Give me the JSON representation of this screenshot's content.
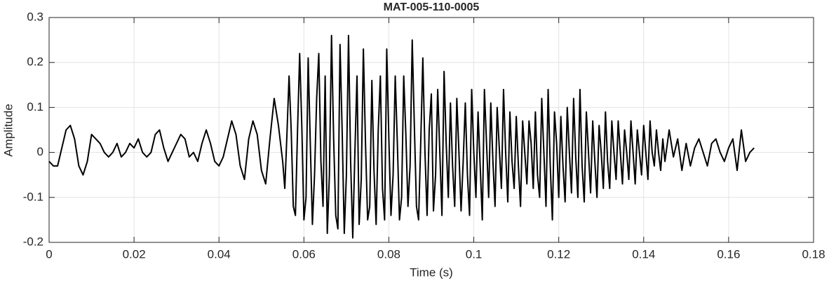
{
  "chart_data": {
    "type": "line",
    "title": "MAT-005-110-0005",
    "xlabel": "Time (s)",
    "ylabel": "Amplitude",
    "xlim": [
      0,
      0.18
    ],
    "xticks": [
      0,
      0.02,
      0.04,
      0.06,
      0.08,
      0.1,
      0.12,
      0.14,
      0.16,
      0.18
    ],
    "ylim": [
      -0.2,
      0.3
    ],
    "yticks": [
      -0.2,
      -0.1,
      0,
      0.1,
      0.2,
      0.3
    ],
    "grid": true,
    "x": [
      0,
      0.001,
      0.002,
      0.003,
      0.004,
      0.005,
      0.006,
      0.007,
      0.008,
      0.009,
      0.01,
      0.011,
      0.012,
      0.013,
      0.014,
      0.015,
      0.016,
      0.017,
      0.018,
      0.019,
      0.02,
      0.021,
      0.022,
      0.023,
      0.024,
      0.025,
      0.026,
      0.027,
      0.028,
      0.029,
      0.03,
      0.031,
      0.032,
      0.033,
      0.034,
      0.035,
      0.036,
      0.037,
      0.038,
      0.039,
      0.04,
      0.041,
      0.042,
      0.043,
      0.044,
      0.045,
      0.046,
      0.047,
      0.048,
      0.049,
      0.05,
      0.051,
      0.052,
      0.053,
      0.054,
      0.055,
      0.0555,
      0.056,
      0.0565,
      0.057,
      0.0575,
      0.058,
      0.0585,
      0.059,
      0.0595,
      0.06,
      0.0605,
      0.061,
      0.0615,
      0.062,
      0.0625,
      0.063,
      0.0635,
      0.064,
      0.0645,
      0.065,
      0.0655,
      0.066,
      0.0665,
      0.067,
      0.0675,
      0.068,
      0.0685,
      0.069,
      0.0695,
      0.07,
      0.0705,
      0.071,
      0.0715,
      0.072,
      0.0725,
      0.073,
      0.0735,
      0.074,
      0.0745,
      0.075,
      0.0755,
      0.076,
      0.0765,
      0.077,
      0.0775,
      0.078,
      0.0785,
      0.079,
      0.0795,
      0.08,
      0.0805,
      0.081,
      0.0815,
      0.082,
      0.0825,
      0.083,
      0.0835,
      0.084,
      0.0845,
      0.085,
      0.0855,
      0.086,
      0.0865,
      0.087,
      0.0875,
      0.088,
      0.0885,
      0.089,
      0.0895,
      0.09,
      0.0905,
      0.091,
      0.0915,
      0.092,
      0.0925,
      0.093,
      0.0935,
      0.094,
      0.0945,
      0.095,
      0.0955,
      0.096,
      0.0965,
      0.097,
      0.0975,
      0.098,
      0.0985,
      0.099,
      0.0995,
      0.1,
      0.1005,
      0.101,
      0.1015,
      0.102,
      0.1025,
      0.103,
      0.1035,
      0.104,
      0.1045,
      0.105,
      0.1055,
      0.106,
      0.1065,
      0.107,
      0.1075,
      0.108,
      0.1085,
      0.109,
      0.1095,
      0.11,
      0.1105,
      0.111,
      0.1115,
      0.112,
      0.1125,
      0.113,
      0.1135,
      0.114,
      0.1145,
      0.115,
      0.1155,
      0.116,
      0.1165,
      0.117,
      0.1175,
      0.118,
      0.1185,
      0.119,
      0.1195,
      0.12,
      0.1205,
      0.121,
      0.1215,
      0.122,
      0.1225,
      0.123,
      0.1235,
      0.124,
      0.1245,
      0.125,
      0.1255,
      0.126,
      0.1265,
      0.127,
      0.1275,
      0.128,
      0.1285,
      0.129,
      0.1295,
      0.13,
      0.1305,
      0.131,
      0.1315,
      0.132,
      0.1325,
      0.133,
      0.1335,
      0.134,
      0.1345,
      0.135,
      0.1355,
      0.136,
      0.1365,
      0.137,
      0.1375,
      0.138,
      0.1385,
      0.139,
      0.1395,
      0.14,
      0.1405,
      0.141,
      0.1415,
      0.142,
      0.1425,
      0.143,
      0.1435,
      0.144,
      0.1445,
      0.145,
      0.146,
      0.147,
      0.148,
      0.149,
      0.15,
      0.151,
      0.152,
      0.153,
      0.154,
      0.155,
      0.156,
      0.157,
      0.158,
      0.159,
      0.16,
      0.161,
      0.162,
      0.163,
      0.164,
      0.165,
      0.166
    ],
    "series": [
      {
        "color": "#000000",
        "values": [
          -0.02,
          -0.03,
          -0.03,
          0.01,
          0.05,
          0.06,
          0.03,
          -0.03,
          -0.05,
          -0.02,
          0.04,
          0.03,
          0.02,
          0,
          -0.01,
          0,
          0.02,
          -0.01,
          0,
          0.02,
          0.01,
          0.03,
          0,
          -0.01,
          0,
          0.04,
          0.05,
          0.01,
          -0.02,
          0,
          0.02,
          0.04,
          0.03,
          -0.01,
          0,
          -0.02,
          0.02,
          0.05,
          0.02,
          -0.02,
          -0.03,
          -0.01,
          0.03,
          0.07,
          0.04,
          -0.03,
          -0.06,
          0.03,
          0.07,
          0.04,
          -0.04,
          -0.07,
          0.03,
          0.12,
          0.06,
          -0.02,
          -0.08,
          0.04,
          0.17,
          0.05,
          -0.12,
          -0.14,
          0.05,
          0.22,
          0.06,
          -0.15,
          -0.1,
          0.21,
          0.02,
          -0.16,
          -0.05,
          0.12,
          0.22,
          -0.02,
          -0.12,
          0.17,
          -0.18,
          -0.05,
          0.26,
          0.03,
          -0.14,
          -0.17,
          0.24,
          0.05,
          -0.18,
          -0.05,
          0.26,
          -0.02,
          -0.19,
          0,
          0.17,
          -0.16,
          -0.06,
          0.23,
          0.02,
          -0.15,
          -0.12,
          0.16,
          -0.04,
          -0.16,
          0.05,
          0.17,
          -0.08,
          -0.15,
          0.23,
          0.03,
          -0.14,
          -0.05,
          0.17,
          0.02,
          -0.15,
          -0.1,
          0.17,
          0.04,
          -0.12,
          -0.03,
          0.25,
          0.06,
          -0.12,
          -0.15,
          0.02,
          0.21,
          0,
          -0.14,
          0.05,
          0.13,
          -0.13,
          -0.05,
          0.14,
          0,
          -0.14,
          0.18,
          0.02,
          -0.1,
          0.11,
          -0.03,
          -0.12,
          0.12,
          0,
          -0.13,
          -0.02,
          0.11,
          -0.05,
          -0.14,
          0.14,
          0,
          -0.1,
          0.09,
          -0.03,
          -0.15,
          0.14,
          0.02,
          -0.1,
          0.11,
          -0.02,
          -0.12,
          0.1,
          0.01,
          -0.08,
          0.14,
          0,
          -0.11,
          0.09,
          -0.02,
          -0.08,
          0.08,
          -0.03,
          -0.12,
          0.07,
          0,
          -0.07,
          0.07,
          0.02,
          -0.08,
          0.09,
          -0.05,
          -0.1,
          0.12,
          0,
          -0.12,
          0.14,
          -0.03,
          -0.15,
          0.09,
          0.02,
          -0.1,
          0.08,
          -0.03,
          -0.11,
          0.1,
          0,
          -0.09,
          0.12,
          -0.01,
          -0.1,
          0.14,
          -0.03,
          -0.11,
          0.09,
          0,
          -0.09,
          0.07,
          -0.02,
          -0.1,
          0.06,
          0,
          -0.08,
          0.09,
          -0.02,
          -0.08,
          0.07,
          0,
          -0.06,
          0.07,
          0,
          -0.07,
          0.05,
          0,
          -0.06,
          0.07,
          0,
          -0.07,
          0.05,
          0,
          -0.05,
          0.06,
          0,
          -0.06,
          0.07,
          0,
          -0.03,
          0.05,
          0,
          -0.04,
          0.03,
          -0.02,
          0.05,
          -0.01,
          0.03,
          -0.04,
          0.02,
          -0.03,
          0.01,
          0.03,
          0,
          -0.03,
          0.02,
          0.03,
          0,
          -0.02,
          0.01,
          0.03,
          -0.04,
          0.05,
          -0.02,
          0,
          0.01
        ]
      }
    ]
  }
}
